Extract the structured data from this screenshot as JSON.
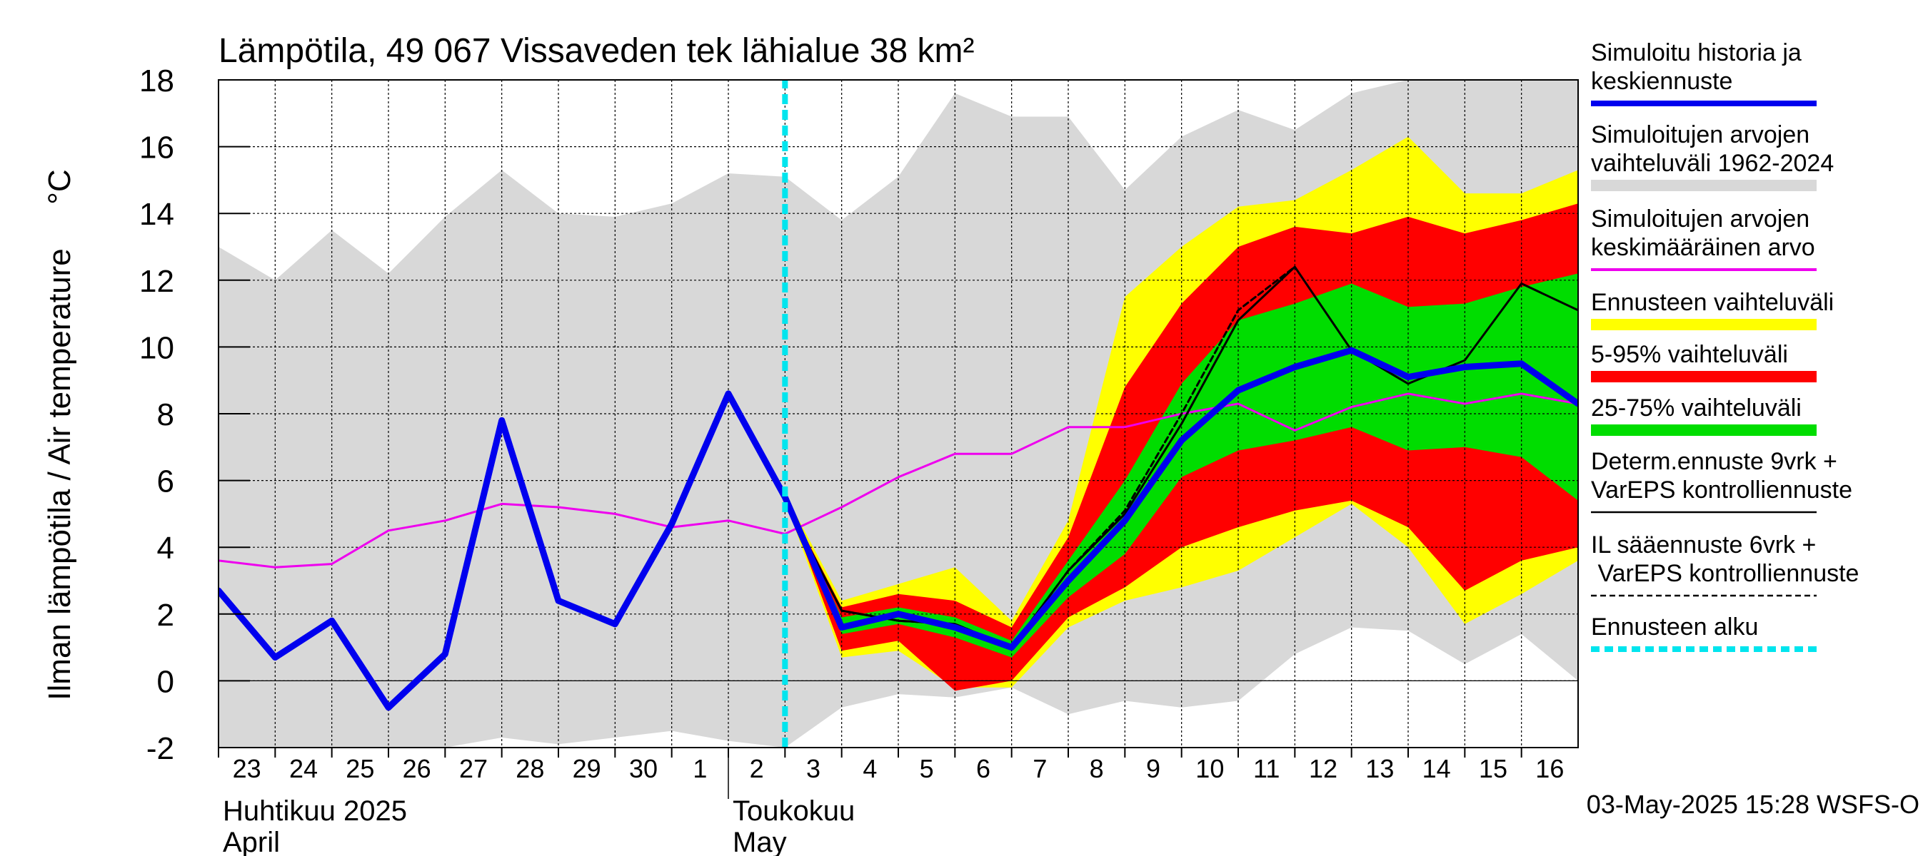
{
  "chart_data": {
    "type": "line",
    "title": "Lämpötila, 49 067 Vissaveden tek lähialue 38 km²",
    "ylabel": "Ilman lämpötila / Air temperature",
    "yunit": "°C",
    "ylim": [
      -2,
      18
    ],
    "yticks": [
      -2,
      0,
      2,
      4,
      6,
      8,
      10,
      12,
      14,
      16,
      18
    ],
    "xlim": [
      "2025-04-23",
      "2025-05-17"
    ],
    "x_day_labels": [
      "23",
      "24",
      "25",
      "26",
      "27",
      "28",
      "29",
      "30",
      "1",
      "2",
      "3",
      "4",
      "5",
      "6",
      "7",
      "8",
      "9",
      "10",
      "11",
      "12",
      "13",
      "14",
      "15",
      "16"
    ],
    "month_labels": [
      {
        "fi": "Huhtikuu  2025",
        "en": "April",
        "start": "2025-04-23"
      },
      {
        "fi": "Toukokuu",
        "en": "May",
        "start": "2025-05-02"
      }
    ],
    "grid": true,
    "legend_position": "right",
    "forecast_start": "2025-05-03",
    "timestamp": "03-May-2025 15:28 WSFS-O",
    "series": [
      {
        "name": "Simuloitu historia ja keskiennuste",
        "style": "line",
        "color": "#0000ee",
        "points": [
          [
            "2025-04-23",
            2.7
          ],
          [
            "2025-04-24",
            0.7
          ],
          [
            "2025-04-25",
            1.8
          ],
          [
            "2025-04-26",
            -0.8
          ],
          [
            "2025-04-27",
            0.8
          ],
          [
            "2025-04-28",
            7.8
          ],
          [
            "2025-04-29",
            2.4
          ],
          [
            "2025-04-30",
            1.7
          ],
          [
            "2025-05-01",
            4.7
          ],
          [
            "2025-05-02",
            8.6
          ],
          [
            "2025-05-03",
            5.5
          ],
          [
            "2025-05-04",
            1.6
          ],
          [
            "2025-05-05",
            2.0
          ],
          [
            "2025-05-06",
            1.6
          ],
          [
            "2025-05-07",
            1.0
          ],
          [
            "2025-05-08",
            3.0
          ],
          [
            "2025-05-09",
            4.8
          ],
          [
            "2025-05-10",
            7.2
          ],
          [
            "2025-05-11",
            8.7
          ],
          [
            "2025-05-12",
            9.4
          ],
          [
            "2025-05-13",
            9.9
          ],
          [
            "2025-05-14",
            9.1
          ],
          [
            "2025-05-15",
            9.4
          ],
          [
            "2025-05-16",
            9.5
          ],
          [
            "2025-05-17",
            8.3
          ]
        ]
      },
      {
        "name": "Simuloitujen arvojen vaihteluväli 1962-2024",
        "style": "band",
        "color": "#d8d8d8",
        "x": [
          "2025-04-23",
          "2025-04-24",
          "2025-04-25",
          "2025-04-26",
          "2025-04-27",
          "2025-04-28",
          "2025-04-29",
          "2025-04-30",
          "2025-05-01",
          "2025-05-02",
          "2025-05-03",
          "2025-05-04",
          "2025-05-05",
          "2025-05-06",
          "2025-05-07",
          "2025-05-08",
          "2025-05-09",
          "2025-05-10",
          "2025-05-11",
          "2025-05-12",
          "2025-05-13",
          "2025-05-14",
          "2025-05-15",
          "2025-05-16",
          "2025-05-17"
        ],
        "upper": [
          13.0,
          12.0,
          13.5,
          12.2,
          13.9,
          15.3,
          14.0,
          13.9,
          14.3,
          15.2,
          15.1,
          13.8,
          15.1,
          17.6,
          16.9,
          16.9,
          14.7,
          16.3,
          17.1,
          16.5,
          17.6,
          18,
          18,
          18,
          18
        ],
        "lower": [
          -2,
          -2,
          -2,
          -2,
          -2,
          -1.7,
          -1.9,
          -1.7,
          -1.5,
          -1.8,
          -2,
          -0.8,
          -0.4,
          -0.5,
          -0.2,
          -1.0,
          -0.6,
          -0.8,
          -0.6,
          0.8,
          1.6,
          1.5,
          0.5,
          1.4,
          0.0
        ]
      },
      {
        "name": "Simuloitujen arvojen keskimääräinen arvo",
        "style": "line",
        "color": "#ee00ee",
        "points": [
          [
            "2025-04-23",
            3.6
          ],
          [
            "2025-04-24",
            3.4
          ],
          [
            "2025-04-25",
            3.5
          ],
          [
            "2025-04-26",
            4.5
          ],
          [
            "2025-04-27",
            4.8
          ],
          [
            "2025-04-28",
            5.3
          ],
          [
            "2025-04-29",
            5.2
          ],
          [
            "2025-04-30",
            5.0
          ],
          [
            "2025-05-01",
            4.6
          ],
          [
            "2025-05-02",
            4.8
          ],
          [
            "2025-05-03",
            4.4
          ],
          [
            "2025-05-04",
            5.2
          ],
          [
            "2025-05-05",
            6.1
          ],
          [
            "2025-05-06",
            6.8
          ],
          [
            "2025-05-07",
            6.8
          ],
          [
            "2025-05-08",
            7.6
          ],
          [
            "2025-05-09",
            7.6
          ],
          [
            "2025-05-10",
            8.0
          ],
          [
            "2025-05-11",
            8.3
          ],
          [
            "2025-05-12",
            7.5
          ],
          [
            "2025-05-13",
            8.2
          ],
          [
            "2025-05-14",
            8.6
          ],
          [
            "2025-05-15",
            8.3
          ],
          [
            "2025-05-16",
            8.6
          ],
          [
            "2025-05-17",
            8.3
          ]
        ]
      },
      {
        "name": "Ennusteen vaihteluväli",
        "style": "band",
        "color": "#ffff00",
        "x": [
          "2025-05-03",
          "2025-05-04",
          "2025-05-05",
          "2025-05-06",
          "2025-05-07",
          "2025-05-08",
          "2025-05-09",
          "2025-05-10",
          "2025-05-11",
          "2025-05-12",
          "2025-05-13",
          "2025-05-14",
          "2025-05-15",
          "2025-05-16",
          "2025-05-17"
        ],
        "upper": [
          5.6,
          2.4,
          2.9,
          3.4,
          1.8,
          4.8,
          11.5,
          13.0,
          14.2,
          14.4,
          15.3,
          16.3,
          14.6,
          14.6,
          15.3
        ],
        "lower": [
          5.4,
          0.7,
          0.9,
          -0.2,
          -0.2,
          1.6,
          2.4,
          2.8,
          3.3,
          4.3,
          5.3,
          4.0,
          1.7,
          2.6,
          3.6
        ]
      },
      {
        "name": "5-95% vaihteluväli",
        "style": "band",
        "color": "#ff0000",
        "x": [
          "2025-05-03",
          "2025-05-04",
          "2025-05-05",
          "2025-05-06",
          "2025-05-07",
          "2025-05-08",
          "2025-05-09",
          "2025-05-10",
          "2025-05-11",
          "2025-05-12",
          "2025-05-13",
          "2025-05-14",
          "2025-05-15",
          "2025-05-16",
          "2025-05-17"
        ],
        "upper": [
          5.5,
          2.2,
          2.6,
          2.4,
          1.6,
          4.3,
          8.8,
          11.3,
          13.0,
          13.6,
          13.4,
          13.9,
          13.4,
          13.8,
          14.3
        ],
        "lower": [
          5.5,
          0.9,
          1.2,
          -0.3,
          0.0,
          1.9,
          2.8,
          4.0,
          4.6,
          5.1,
          5.4,
          4.6,
          2.7,
          3.6,
          4.0
        ]
      },
      {
        "name": "25-75% vaihteluväli",
        "style": "band",
        "color": "#00dd00",
        "x": [
          "2025-05-03",
          "2025-05-04",
          "2025-05-05",
          "2025-05-06",
          "2025-05-07",
          "2025-05-08",
          "2025-05-09",
          "2025-05-10",
          "2025-05-11",
          "2025-05-12",
          "2025-05-13",
          "2025-05-14",
          "2025-05-15",
          "2025-05-16",
          "2025-05-17"
        ],
        "upper": [
          5.5,
          1.9,
          2.2,
          1.9,
          1.2,
          3.6,
          6.0,
          8.9,
          10.8,
          11.3,
          11.9,
          11.2,
          11.3,
          11.8,
          12.2
        ],
        "lower": [
          5.5,
          1.4,
          1.7,
          1.3,
          0.7,
          2.5,
          3.8,
          6.1,
          6.9,
          7.2,
          7.6,
          6.9,
          7.0,
          6.7,
          5.4
        ]
      },
      {
        "name": "Determ.ennuste 9vrk + VarEPS kontrolliennuste",
        "style": "line",
        "color": "#000000",
        "points": [
          [
            "2025-05-03",
            5.4
          ],
          [
            "2025-05-04",
            2.1
          ],
          [
            "2025-05-05",
            1.8
          ],
          [
            "2025-05-06",
            1.7
          ],
          [
            "2025-05-07",
            1.0
          ],
          [
            "2025-05-08",
            3.3
          ],
          [
            "2025-05-09",
            5.0
          ],
          [
            "2025-05-10",
            7.7
          ],
          [
            "2025-05-11",
            10.8
          ],
          [
            "2025-05-12",
            12.4
          ],
          [
            "2025-05-13",
            9.9
          ],
          [
            "2025-05-14",
            8.9
          ],
          [
            "2025-05-15",
            9.6
          ],
          [
            "2025-05-16",
            11.9
          ],
          [
            "2025-05-17",
            11.1
          ]
        ]
      },
      {
        "name": "IL sääennuste 6vrk  +  VarEPS kontrolliennuste",
        "style": "dashed",
        "color": "#000000",
        "points": [
          [
            "2025-05-03",
            5.4
          ],
          [
            "2025-05-04",
            2.1
          ],
          [
            "2025-05-05",
            1.8
          ],
          [
            "2025-05-06",
            1.7
          ],
          [
            "2025-05-07",
            1.0
          ],
          [
            "2025-05-08",
            3.3
          ],
          [
            "2025-05-09",
            5.1
          ],
          [
            "2025-05-10",
            8.0
          ],
          [
            "2025-05-11",
            11.1
          ],
          [
            "2025-05-12",
            12.4
          ]
        ]
      },
      {
        "name": "Ennusteen alku",
        "style": "vline-dashed",
        "color": "#00e5ee",
        "points": [
          [
            "2025-05-03",
            -2
          ],
          [
            "2025-05-03",
            18
          ]
        ]
      }
    ]
  }
}
